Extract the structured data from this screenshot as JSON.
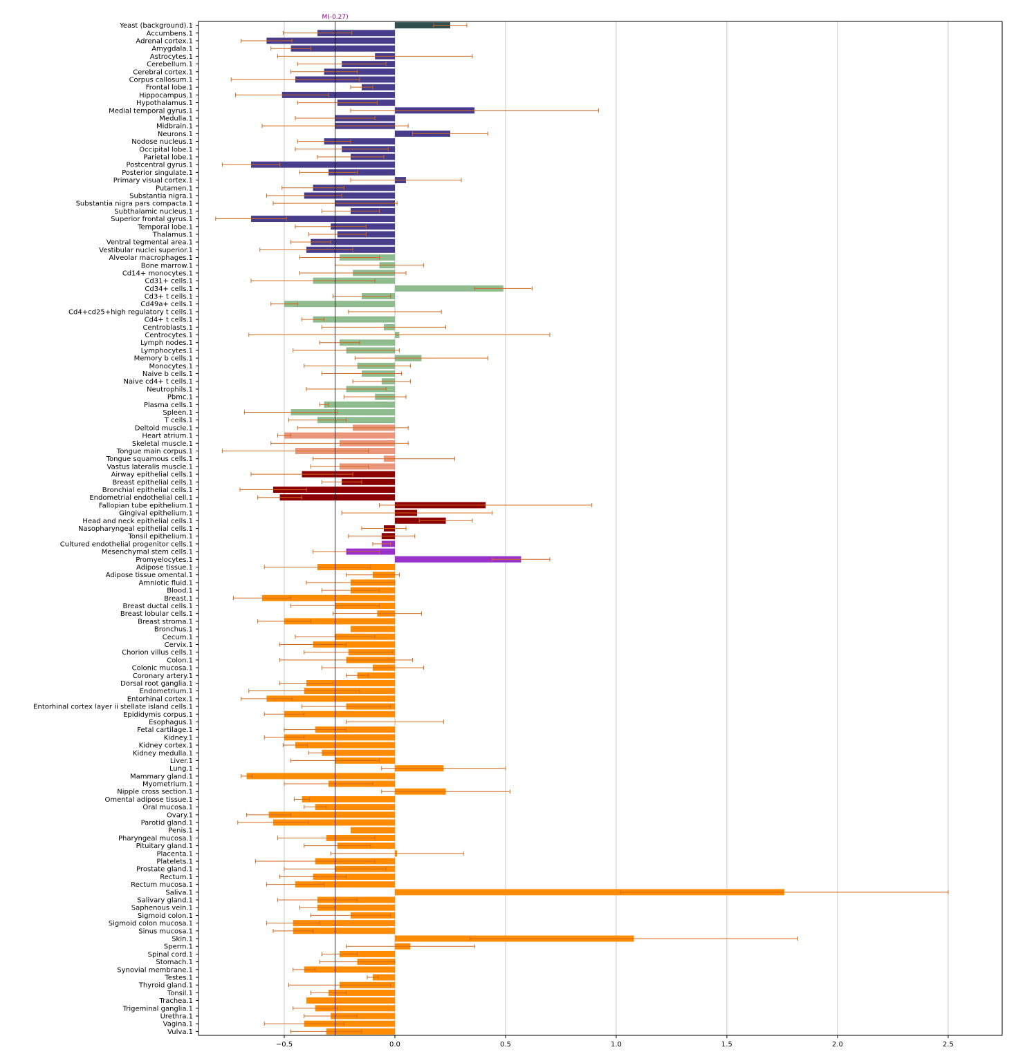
{
  "chart_data": {
    "type": "bar",
    "orientation": "horizontal",
    "xlim": [
      -0.8875,
      2.744
    ],
    "x_ticks": [
      -0.5,
      0.0,
      0.5,
      1.0,
      1.5,
      2.0,
      2.5
    ],
    "x_tick_labels": [
      "−0.5",
      "0.0",
      "0.5",
      "1.0",
      "1.5",
      "2.0",
      "2.5"
    ],
    "grid": "vertical",
    "reference_line": {
      "value": -0.27,
      "label": "M(-0.27)",
      "color": "#8b008b"
    },
    "error_color": "#d2691e",
    "group_colors": [
      "#2f4f4f",
      "#483d8b",
      "#8fbc8f",
      "#e9967a",
      "#8b0000",
      "#9932cc",
      "#ff8c00"
    ],
    "categories": [
      "Yeast (background).1",
      "Accumbens.1",
      "Adrenal cortex.1",
      "Amygdala.1",
      "Astrocytes.1",
      "Cerebellum.1",
      "Cerebral cortex.1",
      "Corpus callosum.1",
      "Frontal lobe.1",
      "Hippocampus.1",
      "Hypothalamus.1",
      "Medial temporal gyrus.1",
      "Medulla.1",
      "Midbrain.1",
      "Neurons.1",
      "Nodose nucleus.1",
      "Occipital lobe.1",
      "Parietal lobe.1",
      "Postcentral gyrus.1",
      "Posterior singulate.1",
      "Primary visual cortex.1",
      "Putamen.1",
      "Substantia nigra.1",
      "Substantia nigra pars compacta.1",
      "Subthalamic nucleus.1",
      "Superior frontal gyrus.1",
      "Temporal lobe.1",
      "Thalamus.1",
      "Ventral tegmental area.1",
      "Vestibular nuclei superior.1",
      "Alveolar macrophages.1",
      "Bone marrow.1",
      "Cd14+ monocytes.1",
      "Cd31+ cells.1",
      "Cd34+ cells.1",
      "Cd3+ t cells.1",
      "Cd49a+ cells.1",
      "Cd4+cd25+high regulatory t cells.1",
      "Cd4+ t cells.1",
      "Centroblasts.1",
      "Centrocytes.1",
      "Lymph nodes.1",
      "Lymphocytes.1",
      "Memory b cells.1",
      "Monocytes.1",
      "Naive b cells.1",
      "Naive cd4+ t cells.1",
      "Neutrophils.1",
      "Pbmc.1",
      "Plasma cells.1",
      "Spleen.1",
      "T cells.1",
      "Deltoid muscle.1",
      "Heart atrium.1",
      "Skeletal muscle.1",
      "Tongue main corpus.1",
      "Tongue squamous cells.1",
      "Vastus lateralis muscle.1",
      "Airway epithelial cells.1",
      "Breast epithelial cells.1",
      "Bronchial epithelial cells.1",
      "Endometrial endothelial cell.1",
      "Fallopian tube epithelium.1",
      "Gingival epithelium.1",
      "Head and neck epithelial cells.1",
      "Nasopharyngeal epithelial cells.1",
      "Tonsil epithelium.1",
      "Cultured endothelial progenitor cells.1",
      "Mesenchymal stem cells.1",
      "Promyelocytes.1",
      "Adipose tissue.1",
      "Adipose tissue omental.1",
      "Amniotic fluid.1",
      "Blood.1",
      "Breast.1",
      "Breast ductal cells.1",
      "Breast lobular cells.1",
      "Breast stroma.1",
      "Bronchus.1",
      "Cecum.1",
      "Cervix.1",
      "Chorion villus cells.1",
      "Colon.1",
      "Colonic mucosa.1",
      "Coronary artery.1",
      "Dorsal root ganglia.1",
      "Endometrium.1",
      "Entorhinal cortex.1",
      "Entorhinal cortex layer ii stellate island cells.1",
      "Epididymis corpus.1",
      "Esophagus.1",
      "Fetal cartilage.1",
      "Kidney.1",
      "Kidney cortex.1",
      "Kidney medulla.1",
      "Liver.1",
      "Lung.1",
      "Mammary gland.1",
      "Myometrium.1",
      "Nipple cross section.1",
      "Omental adipose tissue.1",
      "Oral mucosa.1",
      "Ovary.1",
      "Parotid gland.1",
      "Penis.1",
      "Pharyngeal mucosa.1",
      "Pituitary gland.1",
      "Placenta.1",
      "Platelets.1",
      "Prostate gland.1",
      "Rectum.1",
      "Rectum mucosa.1",
      "Saliva.1",
      "Salivary gland.1",
      "Saphenous vein.1",
      "Sigmoid colon.1",
      "Sigmoid colon mucosa.1",
      "Sinus mucosa.1",
      "Skin.1",
      "Sperm.1",
      "Spinal cord.1",
      "Stomach.1",
      "Synovial membrane.1",
      "Testes.1",
      "Thyroid gland.1",
      "Tonsil.1",
      "Trachea.1",
      "Trigeminal ganglia.1",
      "Urethra.1",
      "Vagina.1",
      "Vulva.1"
    ],
    "values": [
      0.25,
      -0.35,
      -0.58,
      -0.47,
      -0.09,
      -0.24,
      -0.32,
      -0.45,
      -0.15,
      -0.51,
      -0.26,
      0.36,
      -0.27,
      -0.27,
      0.25,
      -0.32,
      -0.24,
      -0.2,
      -0.65,
      -0.3,
      0.05,
      -0.37,
      -0.41,
      -0.27,
      -0.2,
      -0.65,
      -0.29,
      -0.26,
      -0.38,
      -0.4,
      -0.25,
      -0.07,
      -0.19,
      -0.37,
      0.49,
      -0.15,
      -0.5,
      0.0,
      -0.37,
      -0.05,
      0.02,
      -0.25,
      -0.22,
      0.12,
      -0.17,
      -0.15,
      -0.06,
      -0.22,
      -0.09,
      -0.32,
      -0.47,
      -0.35,
      -0.19,
      -0.5,
      -0.25,
      -0.45,
      -0.05,
      -0.25,
      -0.42,
      -0.24,
      -0.55,
      -0.52,
      0.41,
      0.1,
      0.23,
      -0.05,
      -0.06,
      -0.06,
      -0.22,
      0.57,
      -0.35,
      -0.1,
      -0.2,
      -0.2,
      -0.6,
      -0.27,
      -0.08,
      -0.5,
      -0.2,
      -0.27,
      -0.37,
      -0.21,
      -0.22,
      -0.1,
      -0.17,
      -0.4,
      -0.41,
      -0.58,
      -0.22,
      -0.5,
      0.0,
      -0.36,
      -0.5,
      -0.45,
      -0.33,
      -0.27,
      0.22,
      -0.67,
      -0.3,
      0.23,
      -0.42,
      -0.36,
      -0.57,
      -0.55,
      -0.2,
      -0.31,
      -0.26,
      0.01,
      -0.36,
      -0.27,
      -0.37,
      -0.45,
      1.76,
      -0.35,
      -0.35,
      -0.2,
      -0.46,
      -0.46,
      1.08,
      0.07,
      -0.25,
      -0.17,
      -0.41,
      -0.1,
      -0.25,
      -0.3,
      -0.4,
      -0.36,
      -0.29,
      -0.41,
      -0.31
    ],
    "errors": [
      0.075,
      0.155,
      0.115,
      0.09,
      0.44,
      0.2,
      0.15,
      0.29,
      0.05,
      0.21,
      0.18,
      0.56,
      0.18,
      0.33,
      0.17,
      0.12,
      0.21,
      0.15,
      0.13,
      0.13,
      0.25,
      0.14,
      0.17,
      0.28,
      0.13,
      0.16,
      0.16,
      0.13,
      0.09,
      0.21,
      0.18,
      0.2,
      0.24,
      0.28,
      0.13,
      0.13,
      0.06,
      0.21,
      0.05,
      0.28,
      0.68,
      0.09,
      0.24,
      0.3,
      0.24,
      0.18,
      0.13,
      0.18,
      0.14,
      0.02,
      0.21,
      0.13,
      0.25,
      0.03,
      0.31,
      0.33,
      0.32,
      0.13,
      0.23,
      0.09,
      0.15,
      0.1,
      0.48,
      0.34,
      0.12,
      0.1,
      0.15,
      0.04,
      0.15,
      0.13,
      0.24,
      0.12,
      0.2,
      0.13,
      0.13,
      0.2,
      0.2,
      0.12,
      0.0,
      0.18,
      0.15,
      0.2,
      0.3,
      0.23,
      0.05,
      0.12,
      0.25,
      0.115,
      0.2,
      0.09,
      0.22,
      0.14,
      0.09,
      0.055,
      0.06,
      0.2,
      0.28,
      0.025,
      0.2,
      0.29,
      0.035,
      0.05,
      0.1,
      0.16,
      0.0,
      0.22,
      0.15,
      0.3,
      0.27,
      0.23,
      0.15,
      0.13,
      0.74,
      0.18,
      0.08,
      0.18,
      0.12,
      0.09,
      0.74,
      0.29,
      0.08,
      0.17,
      0.05,
      0.025,
      0.23,
      0.08,
      0.0,
      0.1,
      0.12,
      0.18,
      0.16
    ],
    "groups": [
      0,
      1,
      1,
      1,
      1,
      1,
      1,
      1,
      1,
      1,
      1,
      1,
      1,
      1,
      1,
      1,
      1,
      1,
      1,
      1,
      1,
      1,
      1,
      1,
      1,
      1,
      1,
      1,
      1,
      1,
      2,
      2,
      2,
      2,
      2,
      2,
      2,
      2,
      2,
      2,
      2,
      2,
      2,
      2,
      2,
      2,
      2,
      2,
      2,
      2,
      2,
      2,
      3,
      3,
      3,
      3,
      3,
      3,
      4,
      4,
      4,
      4,
      4,
      4,
      4,
      4,
      4,
      5,
      5,
      5,
      6,
      6,
      6,
      6,
      6,
      6,
      6,
      6,
      6,
      6,
      6,
      6,
      6,
      6,
      6,
      6,
      6,
      6,
      6,
      6,
      6,
      6,
      6,
      6,
      6,
      6,
      6,
      6,
      6,
      6,
      6,
      6,
      6,
      6,
      6,
      6,
      6,
      6,
      6,
      6,
      6,
      6,
      6,
      6,
      6,
      6,
      6,
      6,
      6,
      6,
      6,
      6,
      6,
      6,
      6,
      6,
      6,
      6,
      6,
      6,
      6
    ]
  }
}
